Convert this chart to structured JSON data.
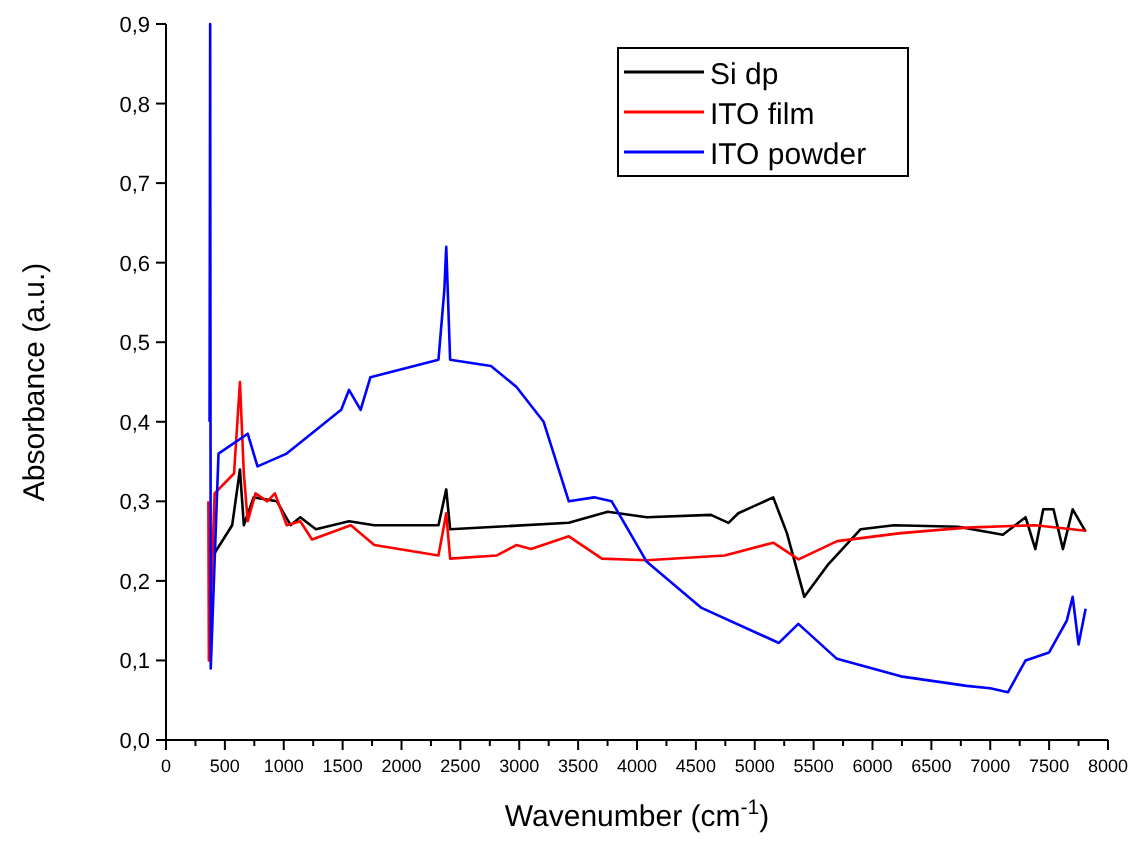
{
  "chart_data": {
    "type": "line",
    "xlabel": "Wavenumber (cm$^{-1}$)",
    "ylabel": "Absorbance (a.u.)",
    "xlim": [
      0,
      8000
    ],
    "ylim": [
      0,
      0.9
    ],
    "xticks": [
      0,
      {
        "value": 250,
        "label": null
      },
      500,
      {
        "value": 750,
        "label": null
      },
      1000,
      {
        "value": 1250,
        "label": null
      },
      1500,
      {
        "value": 1750,
        "label": null
      },
      2000,
      {
        "value": 2250,
        "label": null
      },
      2500,
      {
        "value": 2750,
        "label": null
      },
      3000,
      {
        "value": 3250,
        "label": null
      },
      3500,
      {
        "value": 3750,
        "label": null
      },
      4000,
      {
        "value": 4250,
        "label": null
      },
      4500,
      {
        "value": 4750,
        "label": null
      },
      5000,
      {
        "value": 5250,
        "label": null
      },
      5500,
      {
        "value": 5750,
        "label": null
      },
      6000,
      {
        "value": 6250,
        "label": null
      },
      6500,
      {
        "value": 6750,
        "label": null
      },
      7000,
      {
        "value": 7250,
        "label": null
      },
      7500,
      {
        "value": 7750,
        "label": null
      },
      8000
    ],
    "yticks": [
      {
        "value": 0,
        "label": "0,0"
      },
      {
        "value": 0.1,
        "label": "0,1"
      },
      {
        "value": 0.2,
        "label": "0,2"
      },
      {
        "value": 0.3,
        "label": "0,3"
      },
      {
        "value": 0.4,
        "label": "0,4"
      },
      {
        "value": 0.5,
        "label": "0,5"
      },
      {
        "value": 0.6,
        "label": "0,6"
      },
      {
        "value": 0.7,
        "label": "0,7"
      },
      {
        "value": 0.8,
        "label": "0,8"
      },
      {
        "value": 0.9,
        "label": "0,9"
      }
    ],
    "grid": false,
    "legend": "top right",
    "marker": "none",
    "line_style": "solid",
    "series": [
      {
        "name": "Si dp",
        "color": "#000000",
        "x": [
          364,
          413,
          562,
          628,
          661,
          744,
          942,
          1058,
          1140,
          1273,
          1554,
          1769,
          2314,
          2380,
          2413,
          3421,
          3752,
          4083,
          4628,
          4777,
          4860,
          5157,
          5273,
          5421,
          5620,
          5900,
          6182,
          6727,
          7107,
          7300,
          7383,
          7450,
          7537,
          7617,
          7700,
          7810
        ],
        "values": [
          0.24,
          0.235,
          0.27,
          0.34,
          0.27,
          0.305,
          0.3,
          0.27,
          0.28,
          0.265,
          0.275,
          0.27,
          0.27,
          0.315,
          0.265,
          0.273,
          0.287,
          0.28,
          0.283,
          0.273,
          0.285,
          0.305,
          0.26,
          0.18,
          0.22,
          0.265,
          0.27,
          0.268,
          0.258,
          0.28,
          0.24,
          0.29,
          0.29,
          0.24,
          0.29,
          0.262
        ]
      },
      {
        "name": "ITO film",
        "color": "#ff0000",
        "x": [
          360,
          364,
          413,
          578,
          628,
          661,
          694,
          760,
          860,
          925,
          1025,
          1140,
          1240,
          1570,
          1769,
          2314,
          2380,
          2413,
          2810,
          2975,
          3100,
          3421,
          3702,
          4083,
          4744,
          5157,
          5372,
          5700,
          6240,
          6800,
          7383,
          7810
        ],
        "values": [
          0.3,
          0.1,
          0.31,
          0.335,
          0.45,
          0.335,
          0.275,
          0.31,
          0.3,
          0.31,
          0.27,
          0.275,
          0.252,
          0.27,
          0.245,
          0.232,
          0.285,
          0.228,
          0.232,
          0.245,
          0.24,
          0.256,
          0.228,
          0.226,
          0.232,
          0.248,
          0.227,
          0.25,
          0.26,
          0.267,
          0.27,
          0.263
        ]
      },
      {
        "name": "ITO powder",
        "color": "#0000ff",
        "x": [
          370,
          375,
          380,
          446,
          694,
          777,
          1025,
          1488,
          1554,
          1653,
          1736,
          2314,
          2364,
          2380,
          2413,
          2760,
          2975,
          3207,
          3421,
          3636,
          3785,
          4083,
          4548,
          5205,
          5370,
          5698,
          6240,
          6800,
          7000,
          7150,
          7300,
          7500,
          7650,
          7700,
          7750,
          7810
        ],
        "values": [
          0.4,
          0.9,
          0.09,
          0.36,
          0.385,
          0.344,
          0.36,
          0.415,
          0.44,
          0.415,
          0.456,
          0.478,
          0.566,
          0.62,
          0.478,
          0.47,
          0.444,
          0.4,
          0.3,
          0.305,
          0.3,
          0.224,
          0.166,
          0.122,
          0.146,
          0.102,
          0.08,
          0.068,
          0.065,
          0.06,
          0.1,
          0.11,
          0.15,
          0.18,
          0.12,
          0.165
        ]
      }
    ]
  }
}
